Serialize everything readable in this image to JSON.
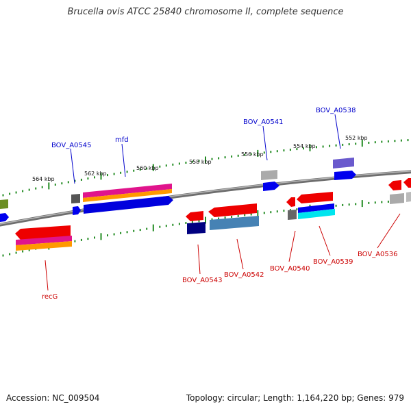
{
  "title": "Brucella ovis ATCC 25840 chromosome II, complete sequence",
  "accession_text": "Accession: NC_009504",
  "summary_text": "Topology: circular; Length: 1,164,220 bp; Genes: 979",
  "colors": {
    "backbone": "#777777",
    "ticks": "#228b22",
    "forward_label": "#0000cc",
    "reverse_label": "#cc0000"
  },
  "kbp_labels": [
    "564 kbp",
    "562 kbp",
    "560 kbp",
    "558 kbp",
    "556 kbp",
    "554 kbp",
    "552 kbp"
  ],
  "forward_genes": [
    "BOV_A0545",
    "mfd",
    "BOV_A0541",
    "BOV_A0538"
  ],
  "reverse_genes": [
    "recG",
    "BOV_A0543",
    "BOV_A0542",
    "BOV_A0540",
    "BOV_A0539",
    "BOV_A0536"
  ]
}
